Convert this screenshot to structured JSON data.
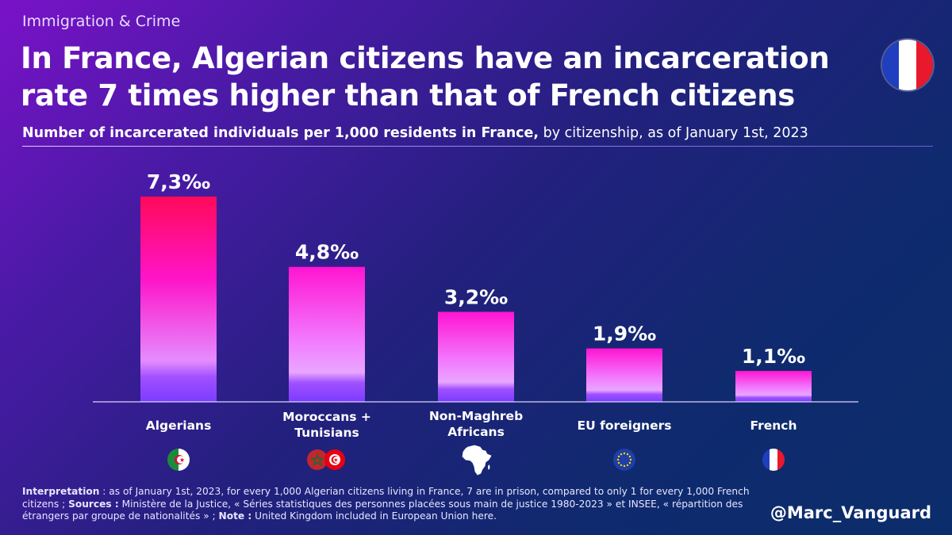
{
  "kicker": "Immigration & Crime",
  "title": "In France, Algerian citizens have an incarceration rate 7 times higher than that of French citizens",
  "subtitle_bold": "Number of incarcerated individuals per 1,000 residents in France,",
  "subtitle_rest": " by citizenship, as of January 1st, 2023",
  "colors": {
    "bar_top_high": "#ff0a5a",
    "bar_top_mid": "#ff14d2",
    "bar_bottom": "#7b3cff"
  },
  "chart_data": {
    "type": "bar",
    "categories": [
      "Algerians",
      "Moroccans + Tunisians",
      "Non-Maghreb Africans",
      "EU foreigners",
      "French"
    ],
    "values": [
      7.3,
      4.8,
      3.2,
      1.9,
      1.1
    ],
    "data_labels": [
      "7,3‰",
      "4,8‰",
      "3,2‰",
      "1,9‰",
      "1,1‰"
    ],
    "unit": "‰",
    "ylim": [
      0,
      7.3
    ],
    "grid": false,
    "legend": "none"
  },
  "category_icons": [
    "algeria-flag-icon",
    "morocco-tunisia-flags-icon",
    "africa-map-icon",
    "eu-flag-icon",
    "france-flag-icon"
  ],
  "footer": {
    "interp_label": "Interpretation",
    "interp_text": " : as of January 1st, 2023, for every 1,000 Algerian citizens living in France, 7 are in prison, compared to only 1 for every 1,000 French citizens ; ",
    "sources_label": "Sources :",
    "sources_text": " Ministère de la Justice, « Séries statistiques des personnes placées sous main de justice 1980-2023 » et INSEE, « répartition des étrangers par groupe de nationalités » ; ",
    "note_label": "Note :",
    "note_text": " United Kingdom included in European Union here."
  },
  "handle": "@Marc_Vanguard"
}
